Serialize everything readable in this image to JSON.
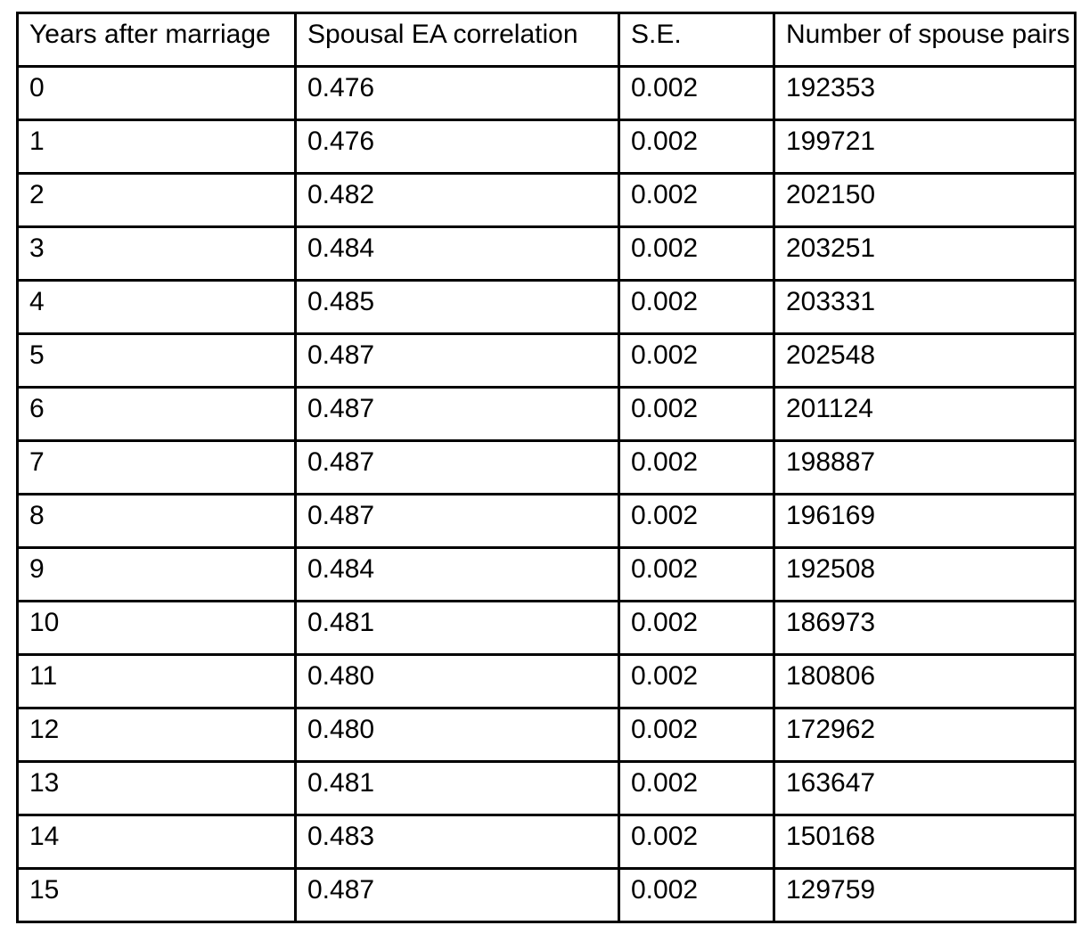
{
  "table": {
    "headers": [
      "Years after marriage",
      "Spousal EA correlation",
      "S.E.",
      "Number of spouse pairs"
    ],
    "rows": [
      [
        "0",
        "0.476",
        "0.002",
        "192353"
      ],
      [
        "1",
        "0.476",
        "0.002",
        "199721"
      ],
      [
        "2",
        "0.482",
        "0.002",
        "202150"
      ],
      [
        "3",
        "0.484",
        "0.002",
        "203251"
      ],
      [
        "4",
        "0.485",
        "0.002",
        "203331"
      ],
      [
        "5",
        "0.487",
        "0.002",
        "202548"
      ],
      [
        "6",
        "0.487",
        "0.002",
        "201124"
      ],
      [
        "7",
        "0.487",
        "0.002",
        "198887"
      ],
      [
        "8",
        "0.487",
        "0.002",
        "196169"
      ],
      [
        "9",
        "0.484",
        "0.002",
        "192508"
      ],
      [
        "10",
        "0.481",
        "0.002",
        "186973"
      ],
      [
        "11",
        "0.480",
        "0.002",
        "180806"
      ],
      [
        "12",
        "0.480",
        "0.002",
        "172962"
      ],
      [
        "13",
        "0.481",
        "0.002",
        "163647"
      ],
      [
        "14",
        "0.483",
        "0.002",
        "150168"
      ],
      [
        "15",
        "0.487",
        "0.002",
        "129759"
      ]
    ],
    "colors": {
      "border": "#000000",
      "text": "#000000",
      "background": "#ffffff"
    }
  }
}
